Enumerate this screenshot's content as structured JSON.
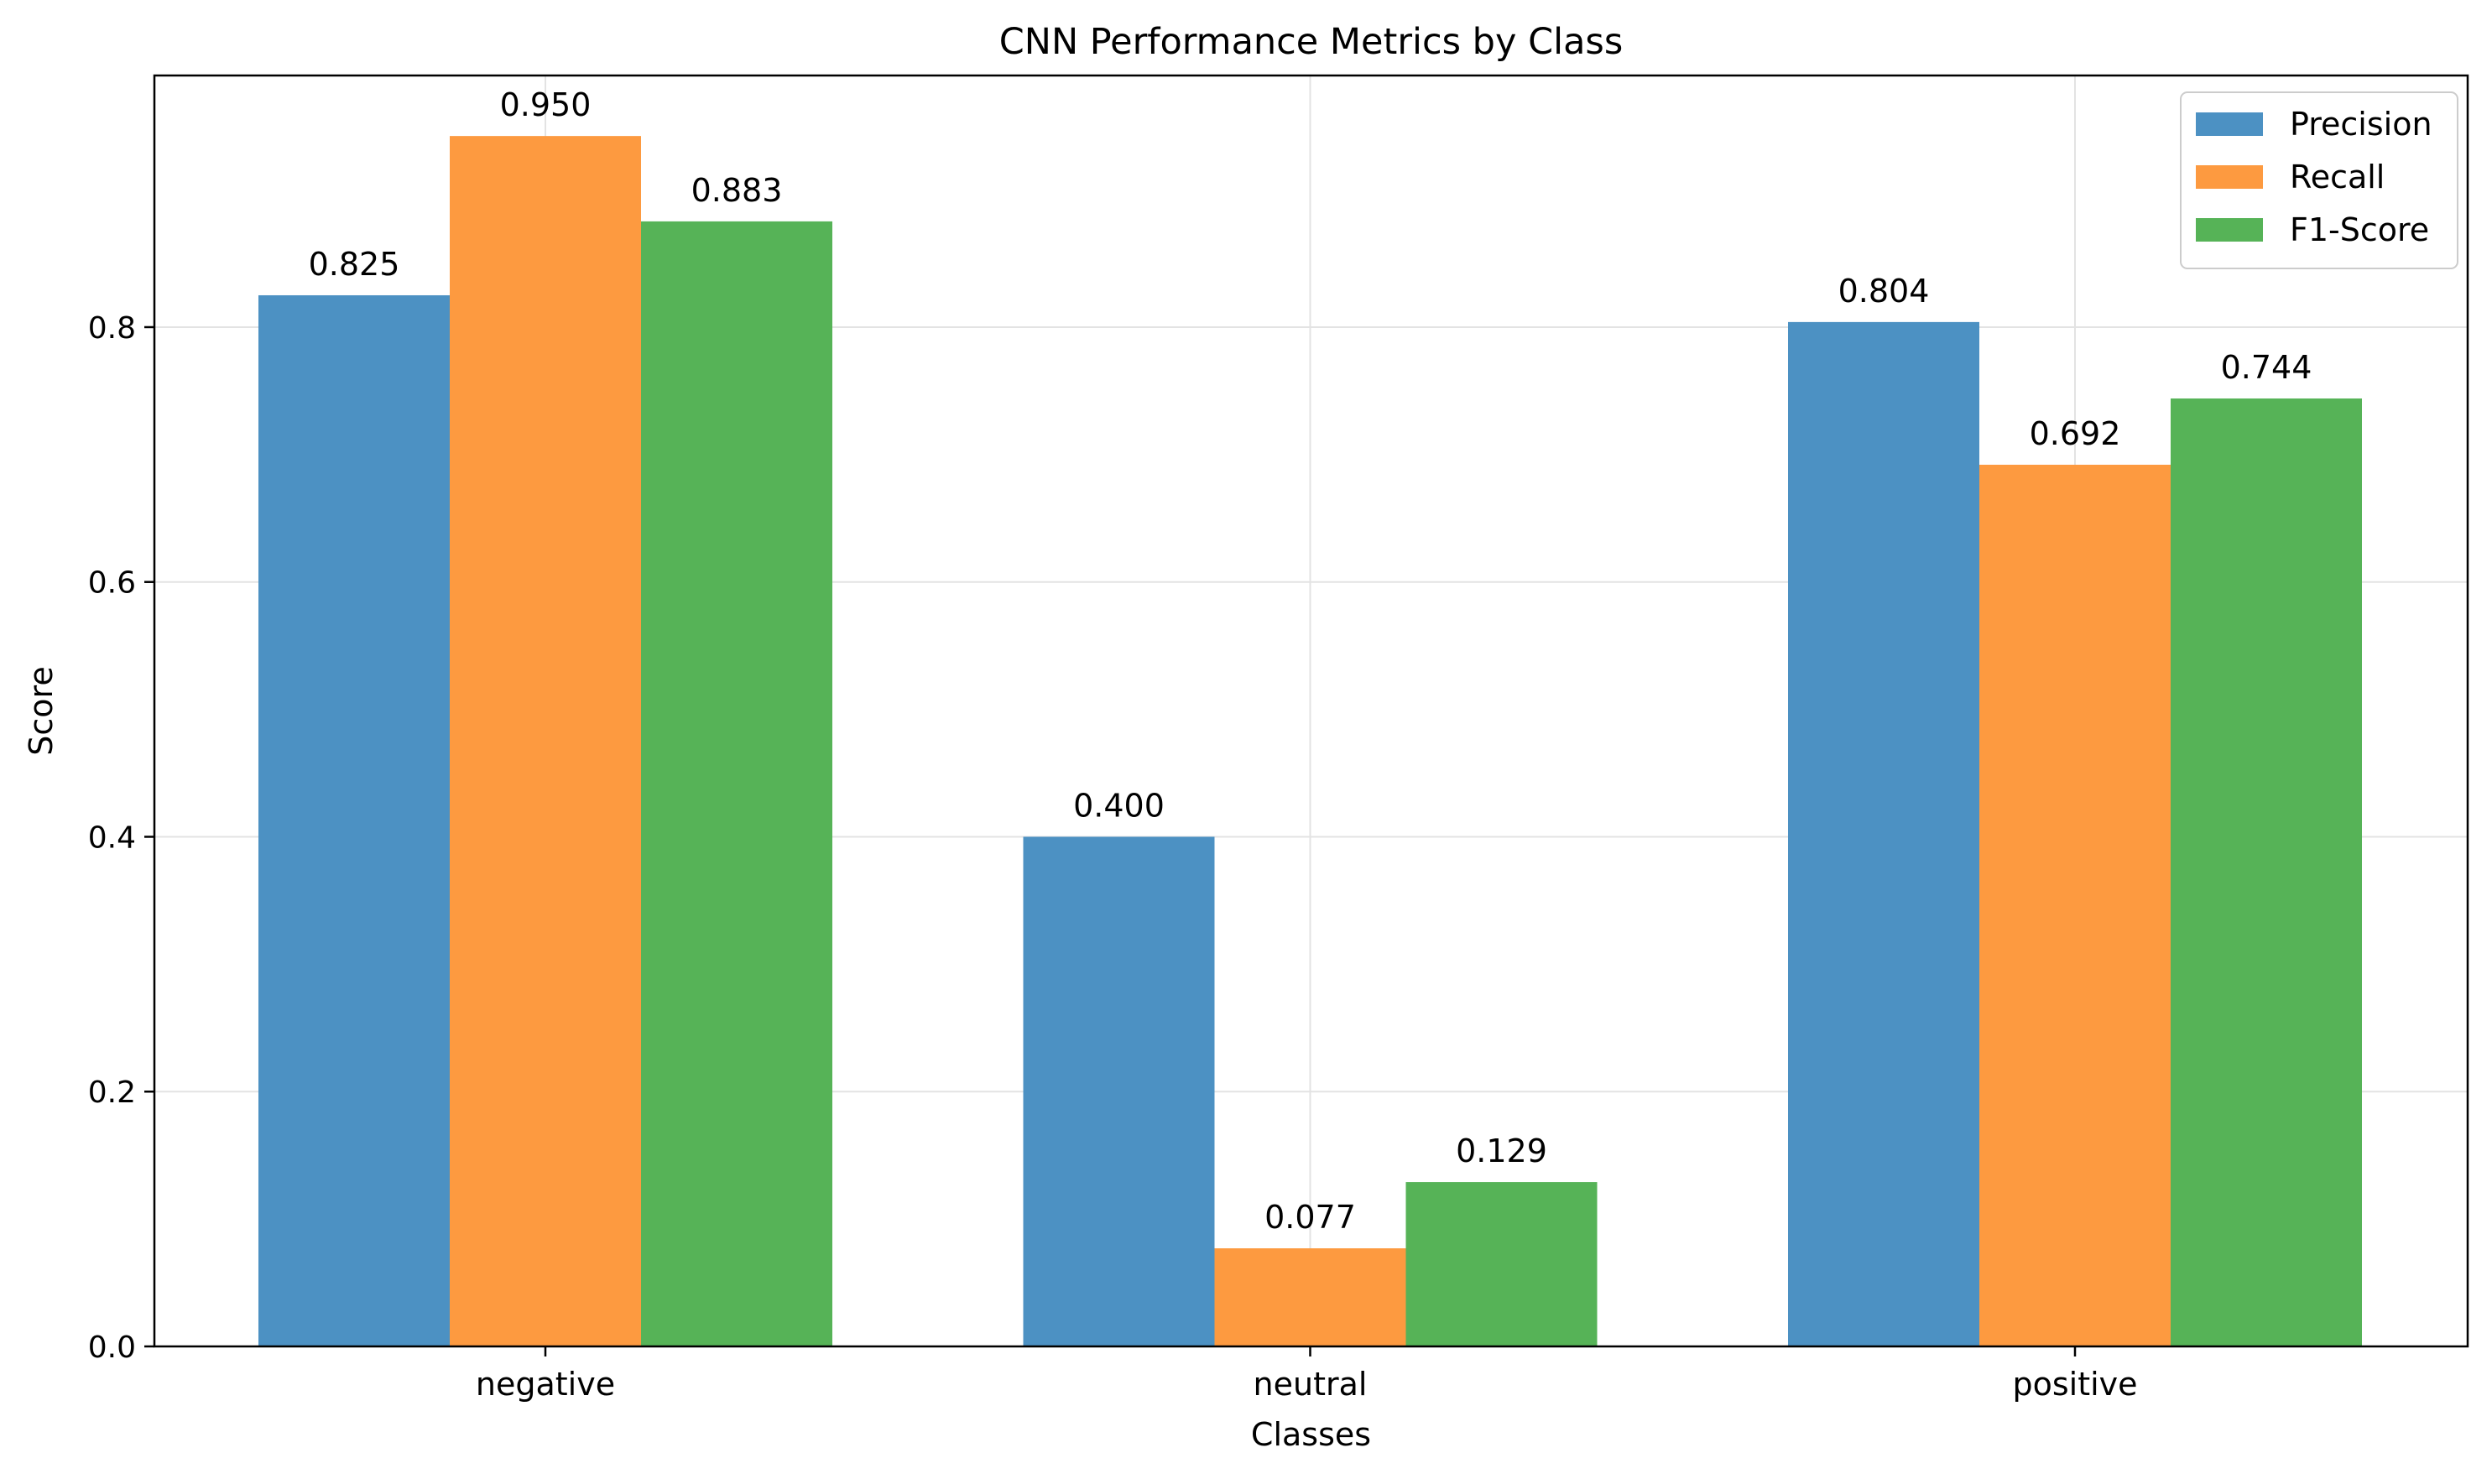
{
  "chart_data": {
    "type": "bar",
    "title": "CNN Performance Metrics by Class",
    "xlabel": "Classes",
    "ylabel": "Score",
    "categories": [
      "negative",
      "neutral",
      "positive"
    ],
    "series": [
      {
        "name": "Precision",
        "color": "#4c91c3",
        "values": [
          0.825,
          0.4,
          0.804
        ],
        "labels": [
          "0.825",
          "0.400",
          "0.804"
        ]
      },
      {
        "name": "Recall",
        "color": "#fd9a40",
        "values": [
          0.95,
          0.077,
          0.692
        ],
        "labels": [
          "0.950",
          "0.077",
          "0.692"
        ]
      },
      {
        "name": "F1-Score",
        "color": "#56b357",
        "values": [
          0.883,
          0.129,
          0.744
        ],
        "labels": [
          "0.883",
          "0.129",
          "0.744"
        ]
      }
    ],
    "ylim": [
      0,
      0.9975
    ],
    "yticks": [
      0.0,
      0.2,
      0.4,
      0.6,
      0.8
    ],
    "ytick_labels": [
      "0.0",
      "0.2",
      "0.4",
      "0.6",
      "0.8"
    ],
    "grid": true,
    "legend_position": "top-right"
  }
}
